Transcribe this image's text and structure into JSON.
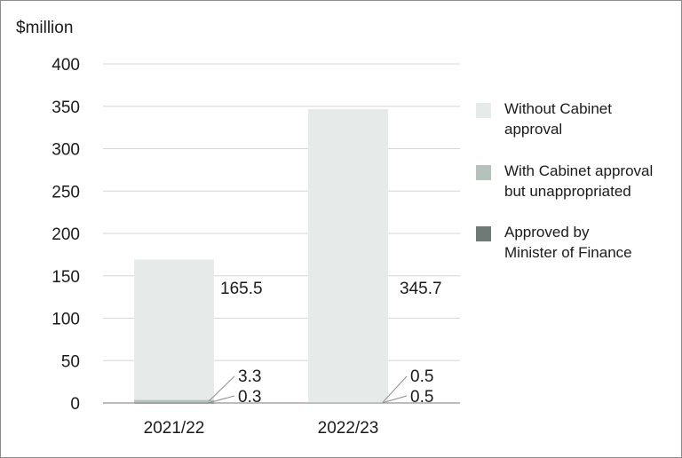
{
  "chart_data": {
    "type": "bar",
    "stacked": true,
    "y_unit_label": "$million",
    "ylim": [
      0,
      400
    ],
    "y_ticks": [
      "0",
      "50",
      "100",
      "150",
      "200",
      "250",
      "300",
      "350",
      "400"
    ],
    "grid": true,
    "legend_position": "right",
    "categories": [
      "2021/22",
      "2022/23"
    ],
    "series": [
      {
        "name": "Approved by Minister of Finance",
        "name_lines": [
          "Approved by",
          "Minister of Finance"
        ],
        "color": "#6f7a77",
        "values": [
          0.3,
          0.5
        ],
        "labels": [
          "0.3",
          "0.5"
        ]
      },
      {
        "name": "With Cabinet approval but unappropriated",
        "name_lines": [
          "With Cabinet approval",
          "but unappropriated"
        ],
        "color": "#b5c2bc",
        "values": [
          3.3,
          0.5
        ],
        "labels": [
          "3.3",
          "0.5"
        ]
      },
      {
        "name": "Without Cabinet approval",
        "name_lines": [
          "Without Cabinet",
          "approval"
        ],
        "color": "#e6eae8",
        "values": [
          165.5,
          345.7
        ],
        "labels": [
          "165.5",
          "345.7"
        ]
      }
    ],
    "legend_order": [
      2,
      1,
      0
    ]
  }
}
